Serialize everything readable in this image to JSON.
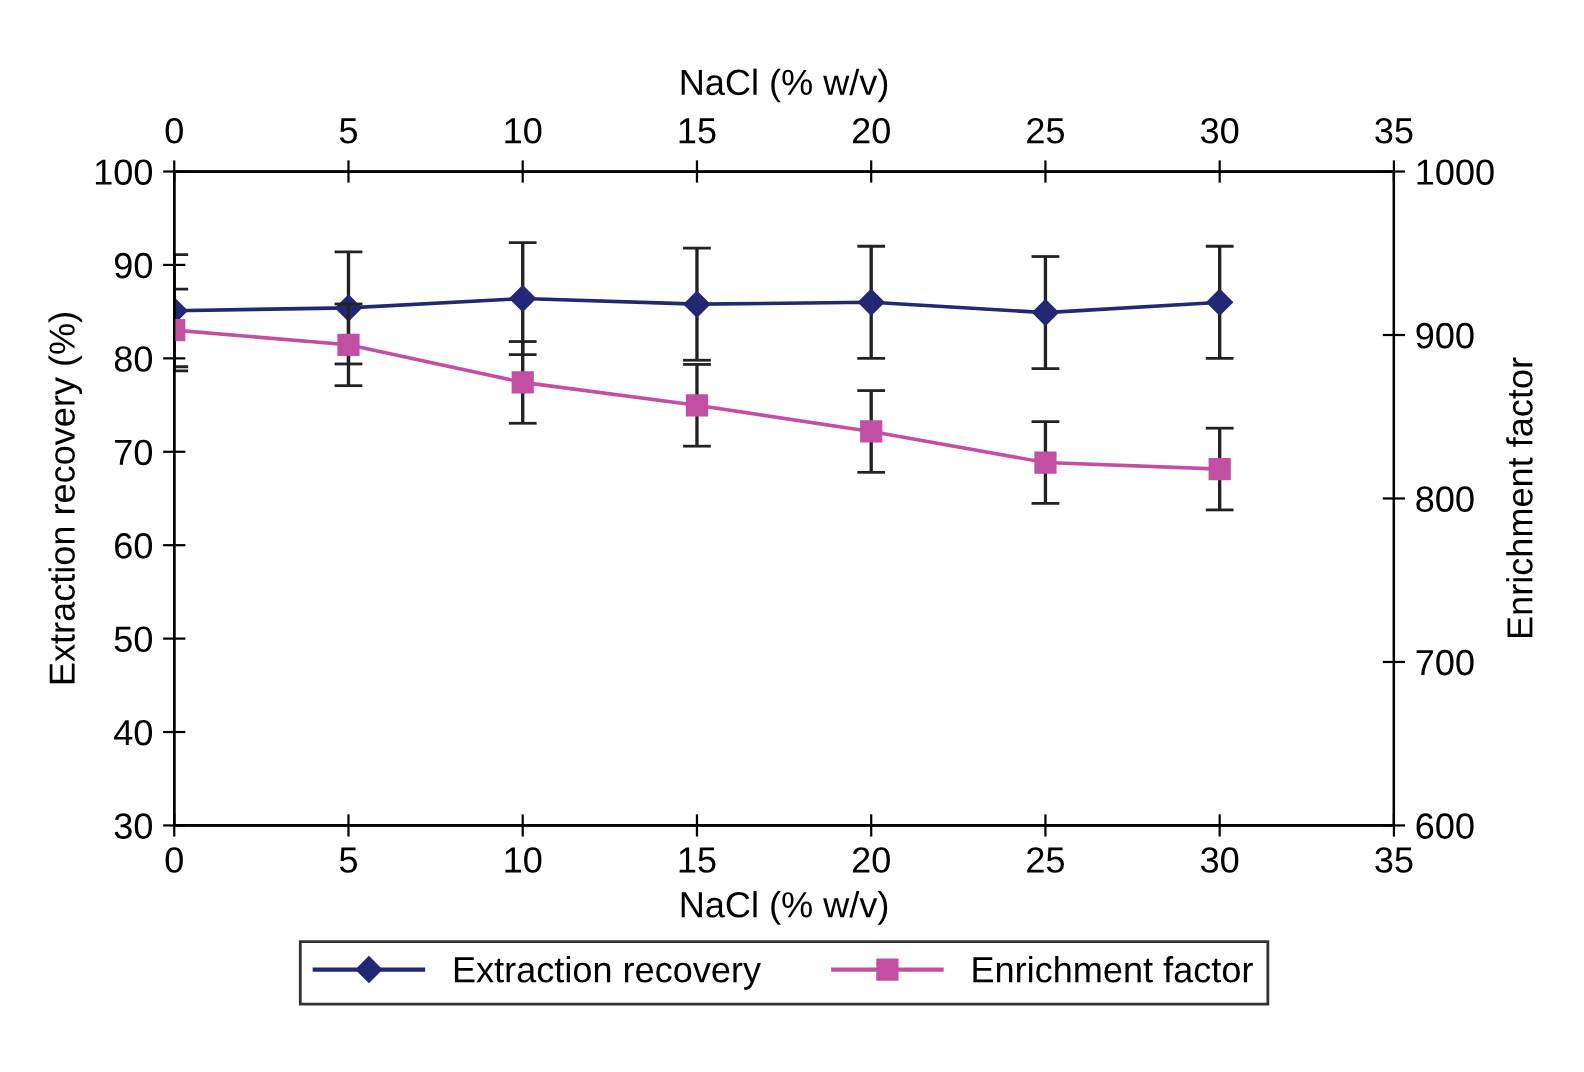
{
  "chart_data": {
    "type": "line",
    "xlabel": "NaCl (% w/v)",
    "x2label": "NaCl (% w/v)",
    "ylabel": "Extraction recovery (%)",
    "y2label": "Enrichment factor",
    "x": [
      0,
      5,
      10,
      15,
      20,
      25,
      30
    ],
    "series": [
      {
        "name": "Extraction recovery",
        "color": "#232874",
        "marker": "diamond",
        "values": [
          85.1,
          85.4,
          86.4,
          85.8,
          86.0,
          84.9,
          86.0
        ],
        "errors": [
          6,
          6,
          6,
          6,
          6,
          6,
          6
        ]
      },
      {
        "name": "Enrichment factor",
        "color": "#c34fa3",
        "marker": "square",
        "axis": "y2",
        "values": [
          903,
          894,
          871,
          857,
          841,
          822,
          818
        ],
        "errors": [
          25,
          25,
          25,
          25,
          25,
          25,
          25
        ]
      }
    ],
    "xlim": [
      0,
      35
    ],
    "xticks": [
      0,
      5,
      10,
      15,
      20,
      25,
      30,
      35
    ],
    "x2lim": [
      0,
      35
    ],
    "x2ticks": [
      0,
      5,
      10,
      15,
      20,
      25,
      30,
      35
    ],
    "ylim": [
      30,
      100
    ],
    "yticks": [
      30,
      40,
      50,
      60,
      70,
      80,
      90,
      100
    ],
    "y2lim": [
      600,
      1000
    ],
    "y2ticks": [
      600,
      700,
      800,
      900,
      1000
    ],
    "grid": false,
    "legend": "bottom",
    "line_style": "solid"
  }
}
